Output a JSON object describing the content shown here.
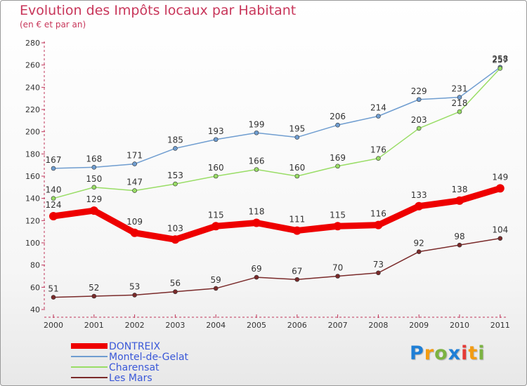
{
  "header": {
    "title": "Evolution des Impôts locaux par Habitant",
    "subtitle": "(en € et par an)"
  },
  "brand": {
    "letters": [
      "P",
      "r",
      "o",
      "x",
      "i",
      "t",
      "i"
    ],
    "colors": [
      "#1f7fd6",
      "#f39c12",
      "#7cb342",
      "#1f7fd6",
      "#e53935",
      "#f39c12",
      "#7cb342"
    ]
  },
  "chart_data": {
    "type": "line",
    "title": "Evolution des Impôts locaux par Habitant",
    "subtitle": "(en € et par an)",
    "xlabel": "",
    "ylabel": "",
    "x": [
      "2000",
      "2001",
      "2002",
      "2003",
      "2004",
      "2005",
      "2006",
      "2007",
      "2008",
      "2009",
      "2010",
      "2011"
    ],
    "ylim": [
      40,
      280
    ],
    "yticks": [
      40,
      60,
      80,
      100,
      120,
      140,
      160,
      180,
      200,
      220,
      240,
      260,
      280
    ],
    "grid": false,
    "legend_position": "bottom-left",
    "series": [
      {
        "name": "DONTREIX",
        "color": "#ee0000",
        "values": [
          124,
          129,
          109,
          103,
          115,
          118,
          111,
          115,
          116,
          133,
          138,
          149
        ],
        "highlight": true
      },
      {
        "name": "Montel-de-Gelat",
        "color": "#6f9dd0",
        "values": [
          167,
          168,
          171,
          185,
          193,
          199,
          195,
          206,
          214,
          229,
          231,
          258
        ]
      },
      {
        "name": "Charensat",
        "color": "#99dd66",
        "values": [
          140,
          150,
          147,
          153,
          160,
          166,
          160,
          169,
          176,
          203,
          218,
          257
        ]
      },
      {
        "name": "Les Mars",
        "color": "#7a2a2a",
        "values": [
          51,
          52,
          53,
          56,
          59,
          69,
          67,
          70,
          73,
          92,
          98,
          104
        ]
      }
    ]
  }
}
